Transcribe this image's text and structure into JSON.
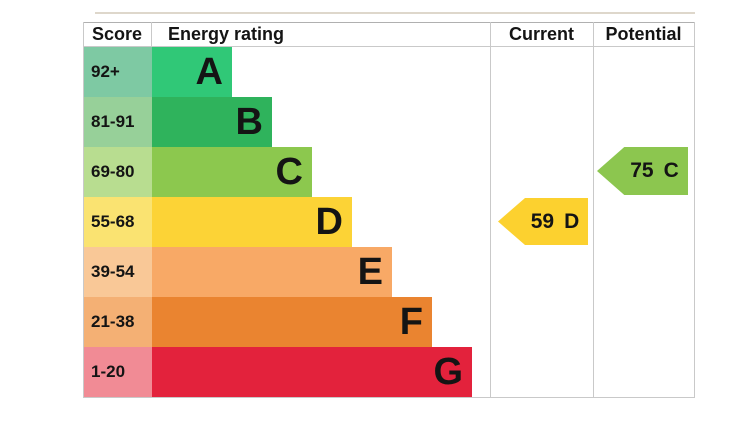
{
  "header": {
    "score_label": "Score",
    "energy_rating_label": "Energy rating",
    "current_label": "Current",
    "potential_label": "Potential"
  },
  "bands": [
    {
      "score": "92+",
      "letter": "A",
      "bar_color": "#30c877",
      "score_color": "#7ec9a3"
    },
    {
      "score": "81-91",
      "letter": "B",
      "bar_color": "#2fb35c",
      "score_color": "#97d099"
    },
    {
      "score": "69-80",
      "letter": "C",
      "bar_color": "#8cc84e",
      "score_color": "#b8dd90"
    },
    {
      "score": "55-68",
      "letter": "D",
      "bar_color": "#fcd336",
      "score_color": "#fae371"
    },
    {
      "score": "39-54",
      "letter": "E",
      "bar_color": "#f8a966",
      "score_color": "#f9c897"
    },
    {
      "score": "21-38",
      "letter": "F",
      "bar_color": "#ea8430",
      "score_color": "#f4b074"
    },
    {
      "score": "1-20",
      "letter": "G",
      "bar_color": "#e3223c",
      "score_color": "#f18b95"
    }
  ],
  "current": {
    "value": "59",
    "band": "D",
    "color": "#fcd12f"
  },
  "potential": {
    "value": "75",
    "band": "C",
    "color": "#8cc64f"
  },
  "chart_data": {
    "type": "bar",
    "title": "Energy rating",
    "columns": [
      "Score",
      "Energy rating",
      "Current",
      "Potential"
    ],
    "categories": [
      "A",
      "B",
      "C",
      "D",
      "E",
      "F",
      "G"
    ],
    "score_ranges": [
      "92+",
      "81-91",
      "69-80",
      "55-68",
      "39-54",
      "21-38",
      "1-20"
    ],
    "bar_lengths_relative": [
      1,
      2,
      3,
      4,
      5,
      6,
      7
    ],
    "band_colors": [
      "#30c877",
      "#2fb35c",
      "#8cc84e",
      "#fcd336",
      "#f8a966",
      "#ea8430",
      "#e3223c"
    ],
    "current": {
      "score": 59,
      "band": "D"
    },
    "potential": {
      "score": 75,
      "band": "C"
    }
  }
}
